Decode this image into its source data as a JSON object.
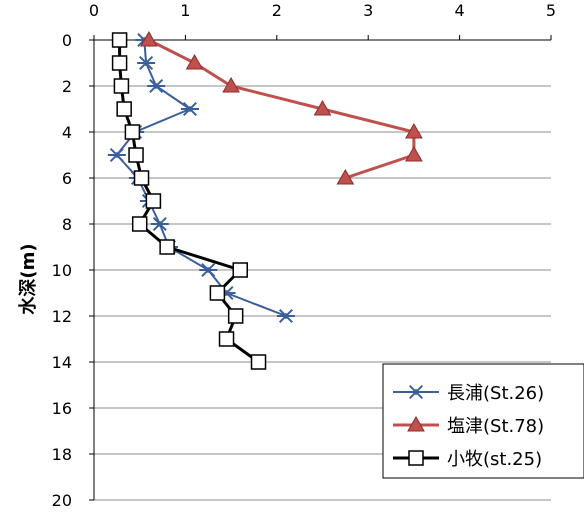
{
  "chart_data": {
    "type": "line",
    "title": "",
    "xlabel": "",
    "ylabel": "水深(m)",
    "xlim": [
      0,
      5
    ],
    "ylim": [
      0,
      20
    ],
    "y_inverted": true,
    "x_axis_position": "top",
    "x_ticks": [
      0,
      1,
      2,
      3,
      4,
      5
    ],
    "y_ticks": [
      0,
      2,
      4,
      6,
      8,
      10,
      12,
      14,
      16,
      18,
      20
    ],
    "grid": "horizontal",
    "legend_position": "bottom-right",
    "series": [
      {
        "name": "長浦(St.26)",
        "color": "#3a5f9a",
        "marker": "asterisk",
        "points": [
          {
            "x": 0.55,
            "y": 0
          },
          {
            "x": 0.57,
            "y": 1
          },
          {
            "x": 0.68,
            "y": 2
          },
          {
            "x": 1.05,
            "y": 3
          },
          {
            "x": 0.45,
            "y": 4
          },
          {
            "x": 0.25,
            "y": 5
          },
          {
            "x": 0.48,
            "y": 6
          },
          {
            "x": 0.6,
            "y": 7
          },
          {
            "x": 0.72,
            "y": 8
          },
          {
            "x": 0.82,
            "y": 9
          },
          {
            "x": 1.25,
            "y": 10
          },
          {
            "x": 1.45,
            "y": 11
          },
          {
            "x": 2.1,
            "y": 12
          }
        ]
      },
      {
        "name": "塩津(St.78)",
        "color": "#c0504d",
        "marker": "triangle",
        "points": [
          {
            "x": 0.6,
            "y": 0
          },
          {
            "x": 1.1,
            "y": 1
          },
          {
            "x": 1.5,
            "y": 2
          },
          {
            "x": 2.5,
            "y": 3
          },
          {
            "x": 3.5,
            "y": 4
          },
          {
            "x": 3.5,
            "y": 5
          },
          {
            "x": 2.75,
            "y": 6
          }
        ]
      },
      {
        "name": "小牧(st.25)",
        "color": "#000000",
        "marker": "square",
        "points": [
          {
            "x": 0.28,
            "y": 0
          },
          {
            "x": 0.28,
            "y": 1
          },
          {
            "x": 0.3,
            "y": 2
          },
          {
            "x": 0.33,
            "y": 3
          },
          {
            "x": 0.42,
            "y": 4
          },
          {
            "x": 0.46,
            "y": 5
          },
          {
            "x": 0.52,
            "y": 6
          },
          {
            "x": 0.65,
            "y": 7
          },
          {
            "x": 0.5,
            "y": 8
          },
          {
            "x": 0.8,
            "y": 9
          },
          {
            "x": 1.6,
            "y": 10
          },
          {
            "x": 1.35,
            "y": 11
          },
          {
            "x": 1.55,
            "y": 12
          },
          {
            "x": 1.45,
            "y": 13
          },
          {
            "x": 1.8,
            "y": 14
          }
        ]
      }
    ]
  }
}
